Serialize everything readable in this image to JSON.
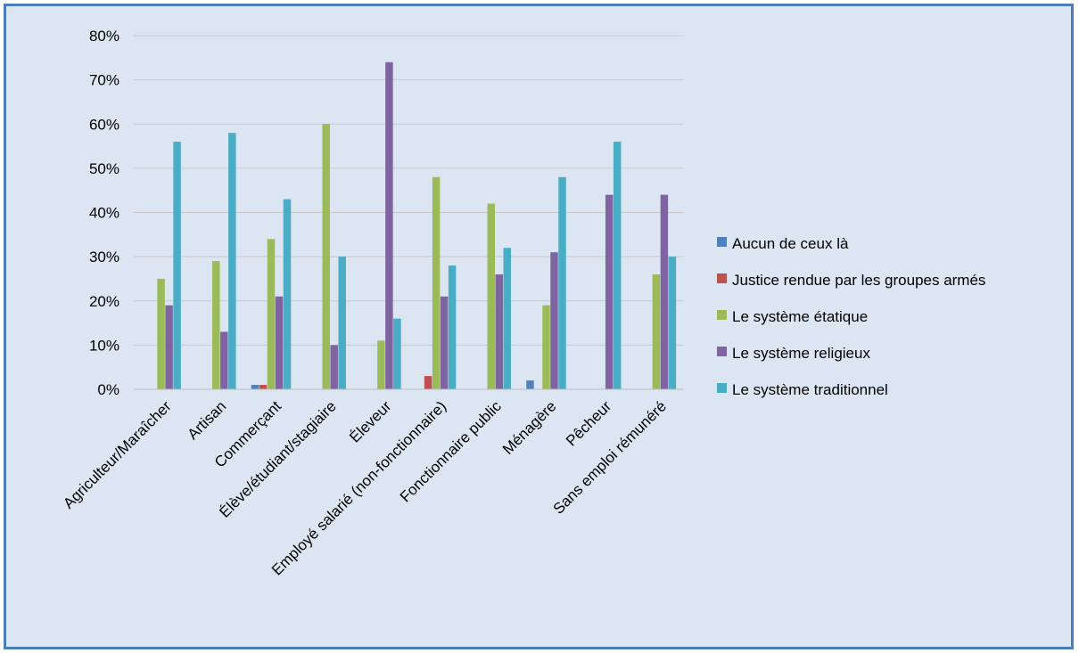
{
  "chart_data": {
    "type": "bar",
    "title": "",
    "xlabel": "",
    "ylabel": "",
    "ylim": [
      0,
      80
    ],
    "ytick_step": 10,
    "yticks": [
      "0%",
      "10%",
      "20%",
      "30%",
      "40%",
      "50%",
      "60%",
      "70%",
      "80%"
    ],
    "grid": true,
    "legend_position": "right",
    "categories": [
      "Agriculteur/Maraîcher",
      "Artisan",
      "Commerçant",
      "Élève/étudiant/stagiaire",
      "Éleveur",
      "Employé salarié (non-fonctionnaire)",
      "Fonctionnaire public",
      "Ménagère",
      "Pêcheur",
      "Sans emploi rémunéré"
    ],
    "series": [
      {
        "name": "Aucun de ceux là",
        "color": "#4f81bd",
        "values": [
          0,
          0,
          1,
          0,
          0,
          0,
          0,
          2,
          0,
          0
        ]
      },
      {
        "name": "Justice rendue par les groupes armés",
        "color": "#c0504d",
        "values": [
          0,
          0,
          1,
          0,
          0,
          3,
          0,
          0,
          0,
          0
        ]
      },
      {
        "name": "Le système étatique",
        "color": "#9bbb59",
        "values": [
          25,
          29,
          34,
          60,
          11,
          48,
          42,
          19,
          0,
          26
        ]
      },
      {
        "name": "Le système religieux",
        "color": "#8064a2",
        "values": [
          19,
          13,
          21,
          10,
          74,
          21,
          26,
          31,
          44,
          44
        ]
      },
      {
        "name": "Le système traditionnel",
        "color": "#4bacc6",
        "values": [
          56,
          58,
          43,
          30,
          16,
          28,
          32,
          48,
          56,
          30
        ]
      }
    ]
  }
}
